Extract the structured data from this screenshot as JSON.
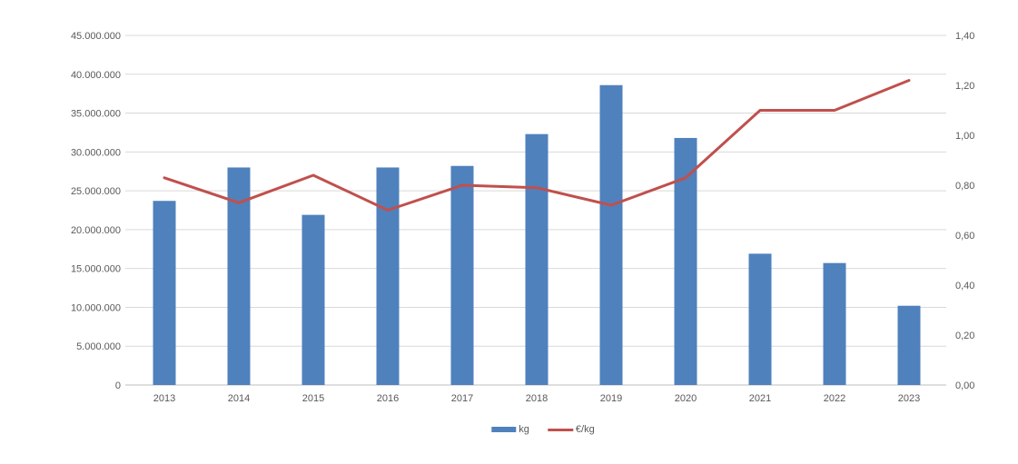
{
  "chart_data": {
    "type": "combo",
    "title": "",
    "categories": [
      "2013",
      "2014",
      "2015",
      "2016",
      "2017",
      "2018",
      "2019",
      "2020",
      "2021",
      "2022",
      "2023"
    ],
    "series": [
      {
        "name": "kg",
        "type": "bar",
        "axis": "left",
        "color": "#4F81BD",
        "values": [
          23700000,
          28000000,
          21900000,
          28000000,
          28200000,
          32300000,
          38600000,
          31800000,
          16900000,
          15700000,
          10200000
        ]
      },
      {
        "name": "€/kg",
        "type": "line",
        "axis": "right",
        "color": "#C0504D",
        "values": [
          0.83,
          0.73,
          0.84,
          0.7,
          0.8,
          0.79,
          0.72,
          0.83,
          1.1,
          1.1,
          1.22
        ]
      }
    ],
    "left_axis": {
      "min": 0,
      "max": 45000000,
      "step": 5000000,
      "tick_labels": [
        "0",
        "5.000.000",
        "10.000.000",
        "15.000.000",
        "20.000.000",
        "25.000.000",
        "30.000.000",
        "35.000.000",
        "40.000.000",
        "45.000.000"
      ]
    },
    "right_axis": {
      "min": 0.0,
      "max": 1.4,
      "step": 0.2,
      "tick_labels": [
        "0,00",
        "0,20",
        "0,40",
        "0,60",
        "0,80",
        "1,00",
        "1,20",
        "1,40"
      ]
    },
    "grid": true,
    "legend_position": "bottom"
  },
  "legend": {
    "kg_label": "kg",
    "eur_per_kg_label": "€/kg"
  },
  "colors": {
    "background": "#FFFFFF",
    "gridline": "#D9D9D9",
    "axis_line": "#BFBFBF",
    "tick_text": "#595959",
    "bar": "#4F81BD",
    "line": "#C0504D"
  }
}
